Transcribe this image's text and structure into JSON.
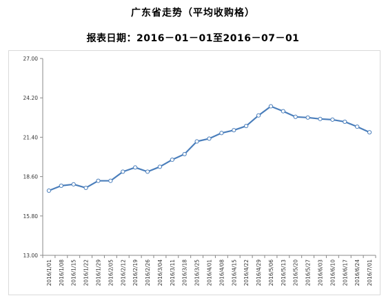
{
  "header": {
    "title": "广东省走势（平均收购格）",
    "subtitle": "报表日期：2016－01－01至2016－07－01"
  },
  "colors": {
    "line": "#4a7ebb",
    "marker_fill": "#ffffff",
    "axis": "#888888"
  },
  "chart_data": {
    "type": "line",
    "title": "广东省走势（平均收购格）",
    "subtitle": "报表日期：2016－01－01至2016－07－01",
    "xlabel": "",
    "ylabel": "",
    "ylim": [
      13.0,
      27.0
    ],
    "y_ticks": [
      "13.00",
      "15.80",
      "18.60",
      "21.40",
      "24.20",
      "27.00"
    ],
    "grid": false,
    "legend": "none",
    "categories": [
      "2016/1/01",
      "2016/1/08",
      "2016/1/15",
      "2016/1/22",
      "2016/1/29",
      "2016/2/05",
      "2016/2/12",
      "2016/2/19",
      "2016/2/26",
      "2016/3/04",
      "2016/3/11",
      "2016/3/18",
      "2016/3/25",
      "2016/4/01",
      "2016/4/08",
      "2016/4/15",
      "2016/4/22",
      "2016/4/29",
      "2016/5/06",
      "2016/5/13",
      "2016/5/20",
      "2016/5/27",
      "2016/6/03",
      "2016/6/10",
      "2016/6/17",
      "2016/6/24",
      "2016/7/01"
    ],
    "series": [
      {
        "values": [
          17.6,
          17.95,
          18.05,
          17.8,
          18.3,
          18.3,
          18.95,
          19.25,
          18.95,
          19.3,
          19.8,
          20.2,
          21.1,
          21.3,
          21.7,
          21.9,
          22.2,
          22.95,
          23.6,
          23.25,
          22.85,
          22.8,
          22.7,
          22.65,
          22.5,
          22.15,
          21.75
        ]
      }
    ]
  }
}
